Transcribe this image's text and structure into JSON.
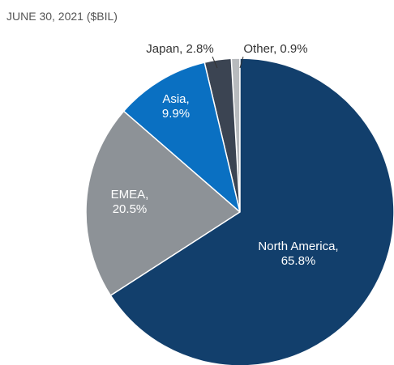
{
  "chart_data": {
    "type": "pie",
    "title": "JUNE 30, 2021 ($BIL)",
    "values": [
      65.8,
      20.5,
      9.9,
      2.8,
      0.9
    ],
    "value_labels": [
      "North America, 65.8%",
      "EMEA, 20.5%",
      "Asia, 9.9%",
      "Japan, 2.8%",
      "Other, 0.9%"
    ],
    "colors": [
      "#123f6c",
      "#8d9297",
      "#0a70c2",
      "#3b4452",
      "#b7babd"
    ]
  }
}
